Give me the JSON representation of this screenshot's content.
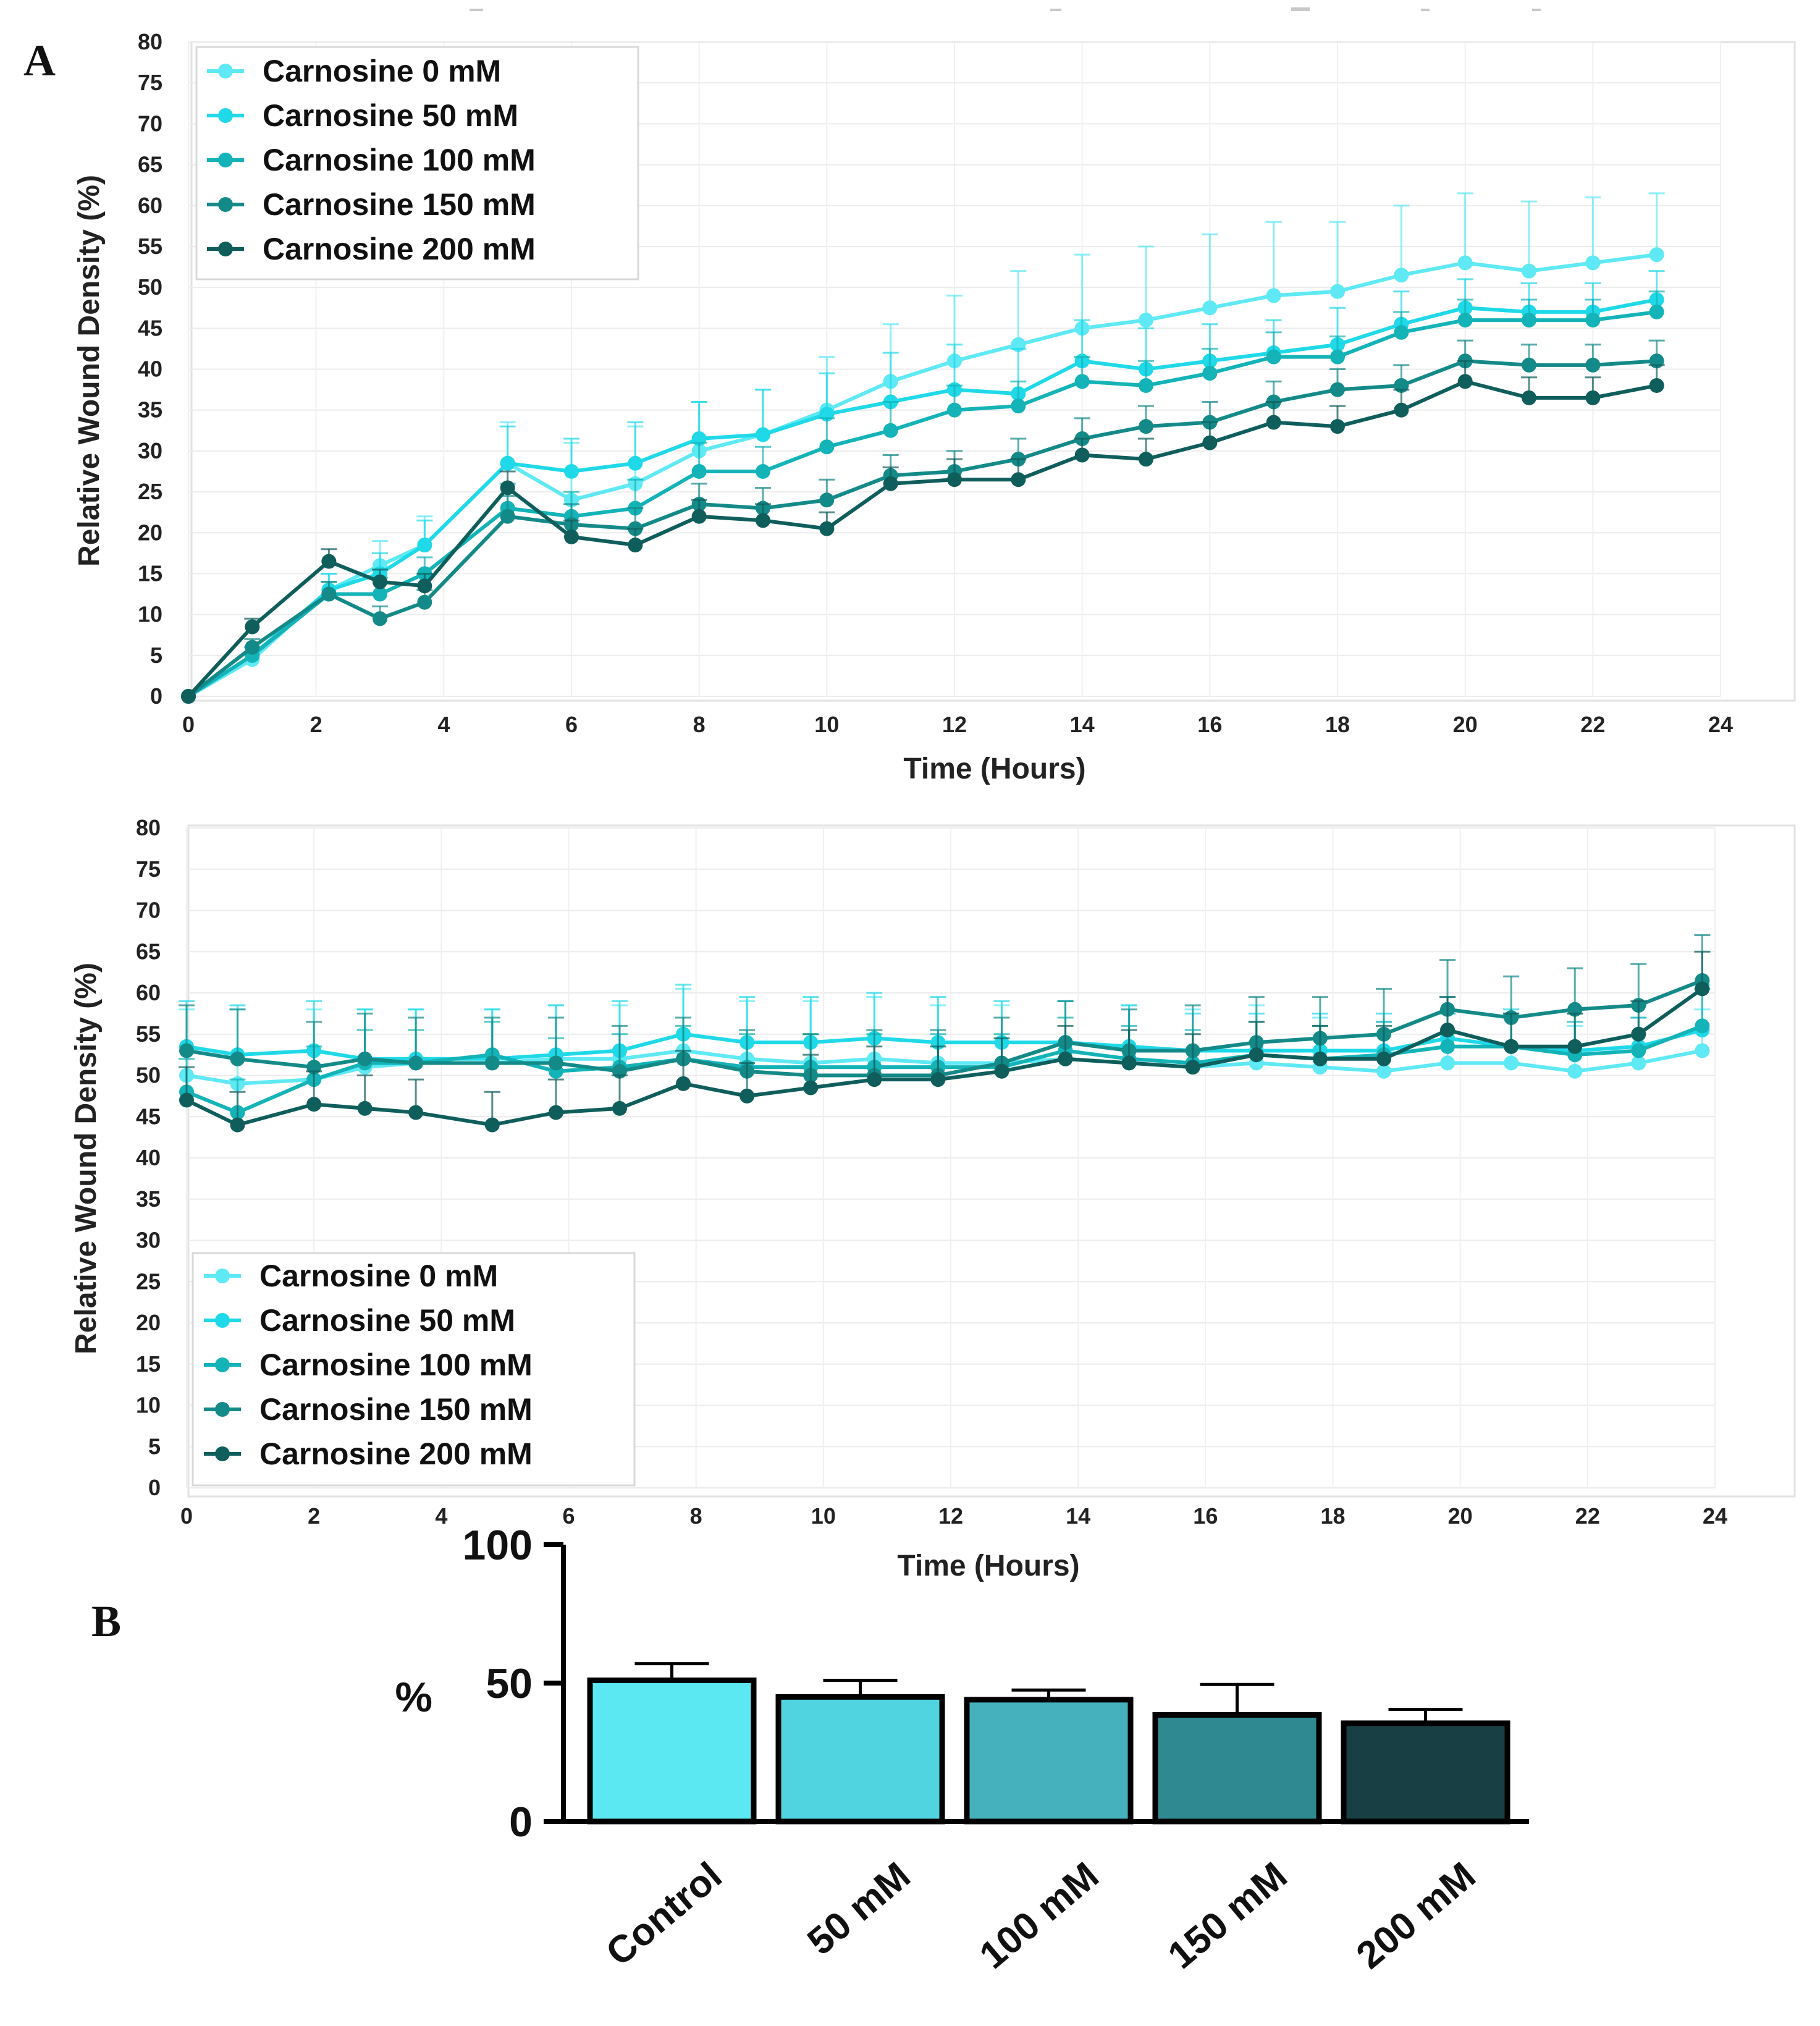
{
  "panel_labels": {
    "a": "A",
    "b": "B"
  },
  "colors": [
    "#5ee9f4",
    "#1fd9e8",
    "#13b3b7",
    "#148a88",
    "#0f5e5c"
  ],
  "bar_colors": [
    "#5ce8f2",
    "#4fd4e0",
    "#44b1bd",
    "#2e8a90",
    "#173f44"
  ],
  "chart_data": [
    {
      "type": "line",
      "panel": "A",
      "xlabel": "Time (Hours)",
      "ylabel": "Relative Wound Density (%)",
      "xlim": [
        0,
        24
      ],
      "ylim": [
        0,
        80
      ],
      "xticks": [
        "0",
        "2",
        "4",
        "6",
        "8",
        "10",
        "12",
        "14",
        "16",
        "18",
        "20",
        "22",
        "24"
      ],
      "yticks": [
        "0",
        "5",
        "10",
        "15",
        "20",
        "25",
        "30",
        "35",
        "40",
        "45",
        "50",
        "55",
        "60",
        "65",
        "70",
        "75",
        "80"
      ],
      "legend_position": "top-left",
      "x": [
        0,
        1,
        2.2,
        3,
        3.7,
        5,
        6,
        7,
        8,
        9,
        10,
        11,
        12,
        13,
        14,
        15,
        16,
        17,
        18,
        19,
        20,
        21,
        22,
        23
      ],
      "series": [
        {
          "name": "Carnosine 0 mM",
          "values": [
            0,
            4.5,
            13,
            16,
            18.5,
            28.5,
            24,
            26,
            30,
            32,
            35,
            38.5,
            41,
            43,
            45,
            46,
            47.5,
            49,
            49.5,
            51.5,
            53,
            52,
            53,
            54
          ],
          "errors": [
            0,
            1,
            2,
            3,
            3.5,
            5,
            7,
            7,
            6,
            5.5,
            6.5,
            7,
            8,
            9,
            9,
            9,
            9,
            9,
            8.5,
            8.5,
            8.5,
            8.5,
            8,
            7.5
          ]
        },
        {
          "name": "Carnosine 50 mM",
          "values": [
            0,
            5,
            13,
            15,
            18.5,
            28.5,
            27.5,
            28.5,
            31.5,
            32,
            34.5,
            36,
            37.5,
            37,
            41,
            40,
            41,
            42,
            43,
            45.5,
            47.5,
            47,
            47,
            48.5
          ],
          "errors": [
            0,
            1,
            2,
            2.5,
            3,
            4.5,
            4,
            5,
            4.5,
            5.5,
            5,
            6,
            5.5,
            5.5,
            5,
            5,
            4.5,
            4,
            4.5,
            4,
            3.5,
            3.5,
            3.5,
            3.5
          ]
        },
        {
          "name": "Carnosine 100 mM",
          "values": [
            0,
            5,
            12.5,
            12.5,
            15,
            23,
            22,
            23,
            27.5,
            27.5,
            30.5,
            32.5,
            35,
            35.5,
            38.5,
            38,
            39.5,
            41.5,
            41.5,
            44.5,
            46,
            46,
            46,
            47
          ],
          "errors": [
            0,
            1,
            1.5,
            2,
            2,
            3,
            3,
            3.5,
            3.5,
            3,
            3.5,
            3.5,
            3,
            3,
            3,
            3,
            3,
            3,
            2.5,
            2.5,
            2.5,
            2.5,
            2.5,
            2.5
          ]
        },
        {
          "name": "Carnosine 150 mM",
          "values": [
            0,
            6,
            12.5,
            9.5,
            11.5,
            22,
            21,
            20.5,
            23.5,
            23,
            24,
            27,
            27.5,
            29,
            31.5,
            33,
            33.5,
            36,
            37.5,
            38,
            41,
            40.5,
            40.5,
            41
          ],
          "errors": [
            0,
            1,
            1.5,
            1.5,
            1.5,
            2.5,
            2.5,
            2.5,
            2.5,
            2.5,
            2.5,
            2.5,
            2.5,
            2.5,
            2.5,
            2.5,
            2.5,
            2.5,
            2.5,
            2.5,
            2.5,
            2.5,
            2.5,
            2.5
          ]
        },
        {
          "name": "Carnosine 200 mM",
          "values": [
            0,
            8.5,
            16.5,
            14,
            13.5,
            25.5,
            19.5,
            18.5,
            22,
            21.5,
            20.5,
            26,
            26.5,
            26.5,
            29.5,
            29,
            31,
            33.5,
            33,
            35,
            38.5,
            36.5,
            36.5,
            38
          ],
          "errors": [
            0,
            1,
            1.5,
            1.5,
            1.5,
            2,
            2,
            2,
            2,
            2,
            2,
            2,
            2.5,
            2.5,
            2,
            2.5,
            2.5,
            2.5,
            2.5,
            2.5,
            2.5,
            2.5,
            2.5,
            2.5
          ]
        }
      ]
    },
    {
      "type": "line",
      "panel": "A",
      "xlabel": "Time (Hours)",
      "ylabel": "Relative Wound Density (%)",
      "xlim": [
        0,
        24
      ],
      "ylim": [
        0,
        80
      ],
      "xticks": [
        "0",
        "2",
        "4",
        "6",
        "8",
        "10",
        "12",
        "14",
        "16",
        "18",
        "20",
        "22",
        "24"
      ],
      "yticks": [
        "0",
        "5",
        "10",
        "15",
        "20",
        "25",
        "30",
        "35",
        "40",
        "45",
        "50",
        "55",
        "60",
        "65",
        "70",
        "75",
        "80"
      ],
      "legend_position": "bottom-left",
      "x": [
        0,
        0.8,
        2,
        2.8,
        3.6,
        4.8,
        5.8,
        6.8,
        7.8,
        8.8,
        9.8,
        10.8,
        11.8,
        12.8,
        13.8,
        14.8,
        15.8,
        16.8,
        17.8,
        18.8,
        19.8,
        20.8,
        21.8,
        22.8,
        23.8
      ],
      "series": [
        {
          "name": "Carnosine 0 mM",
          "values": [
            50,
            49,
            49.5,
            51,
            51.5,
            51.5,
            52,
            52,
            53,
            52,
            51.5,
            52,
            51.5,
            51.5,
            52,
            51.5,
            51,
            51.5,
            51,
            50.5,
            51.5,
            51.5,
            50.5,
            51.5,
            53
          ],
          "errors": [
            8,
            9,
            8.5,
            7,
            6.5,
            6.5,
            6.5,
            6.5,
            7.5,
            7,
            7.5,
            7.5,
            7,
            7,
            7,
            7,
            7,
            7,
            6,
            6,
            6,
            6,
            5.5,
            5.5,
            5
          ]
        },
        {
          "name": "Carnosine 50 mM",
          "values": [
            53.5,
            52.5,
            53,
            52,
            52,
            52,
            52.5,
            53,
            55,
            54,
            54,
            54.5,
            54,
            54,
            54,
            53.5,
            53,
            53,
            53,
            53,
            54.5,
            53.5,
            53,
            53.5,
            55.5
          ],
          "errors": [
            5.5,
            6,
            6,
            6,
            6,
            6,
            6,
            6,
            6,
            5.5,
            5.5,
            5.5,
            5.5,
            5,
            5,
            5,
            4.5,
            4.5,
            4.5,
            4.5,
            5,
            4.5,
            4.5,
            5,
            5.5
          ]
        },
        {
          "name": "Carnosine 100 mM",
          "values": [
            48,
            45.5,
            49.5,
            51.5,
            51.5,
            52.5,
            50.5,
            51,
            52,
            51,
            51,
            51,
            51,
            51,
            53,
            52,
            51.5,
            52.5,
            52,
            52.5,
            53.5,
            53.5,
            52.5,
            53,
            56
          ],
          "errors": [
            4,
            4,
            4,
            4,
            4,
            4,
            4,
            4,
            4,
            4,
            4,
            4,
            4,
            4,
            4,
            4,
            4,
            4,
            4,
            4,
            4,
            4,
            4,
            4,
            4.5
          ]
        },
        {
          "name": "Carnosine 150 mM",
          "values": [
            53,
            52,
            51,
            52,
            51.5,
            51.5,
            51.5,
            50.5,
            52,
            50.5,
            50,
            50,
            50,
            51.5,
            54,
            53,
            53,
            54,
            54.5,
            55,
            58,
            57,
            58,
            58.5,
            61.5
          ],
          "errors": [
            5.5,
            6,
            5.5,
            5.5,
            5.5,
            5.5,
            5.5,
            5.5,
            5,
            5,
            5,
            5.5,
            5.5,
            5.5,
            5,
            5,
            5.5,
            5.5,
            5,
            5.5,
            6,
            5,
            5,
            5,
            5.5
          ]
        },
        {
          "name": "Carnosine 200 mM",
          "values": [
            47,
            44,
            46.5,
            46,
            45.5,
            44,
            45.5,
            46,
            49,
            47.5,
            48.5,
            49.5,
            49.5,
            50.5,
            52,
            51.5,
            51,
            52.5,
            52,
            52,
            55.5,
            53.5,
            53.5,
            55,
            60.5
          ],
          "errors": [
            4,
            4,
            4,
            4,
            4,
            4,
            4,
            4,
            4,
            4,
            4,
            4,
            4,
            4,
            4,
            4,
            4,
            4,
            4,
            4,
            4,
            4,
            4,
            4,
            4.5
          ]
        }
      ]
    },
    {
      "type": "bar",
      "panel": "B",
      "ylabel": "%",
      "ylim": [
        0,
        100
      ],
      "yticks": [
        "0",
        "50",
        "100"
      ],
      "categories": [
        "Control",
        "50 mM",
        "100 mM",
        "150 mM",
        "200 mM"
      ],
      "values": [
        51,
        45,
        44,
        38.5,
        35.5
      ],
      "errors": [
        6,
        6,
        3.5,
        11,
        5
      ]
    }
  ]
}
